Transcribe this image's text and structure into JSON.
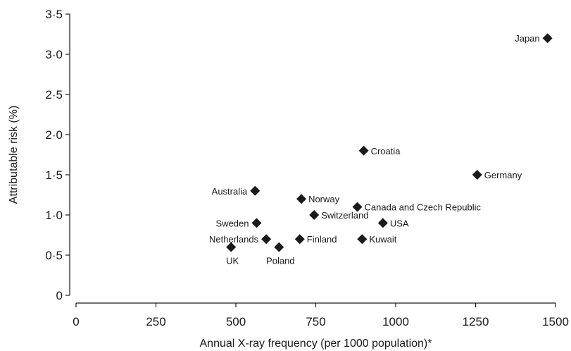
{
  "chart_data": {
    "type": "scatter",
    "title": "",
    "xlabel": "Annual X-ray frequency (per 1000 population)*",
    "ylabel": "Attributable risk (%)",
    "xlim": [
      0,
      1500
    ],
    "ylim": [
      0,
      3.5
    ],
    "x_ticks": [
      {
        "value": 0,
        "label": "0"
      },
      {
        "value": 250,
        "label": "250"
      },
      {
        "value": 500,
        "label": "500"
      },
      {
        "value": 750,
        "label": "750"
      },
      {
        "value": 1000,
        "label": "1000"
      },
      {
        "value": 1250,
        "label": "1250"
      },
      {
        "value": 1500,
        "label": "1500"
      }
    ],
    "y_ticks": [
      {
        "value": 0,
        "label": "0"
      },
      {
        "value": 0.5,
        "label": "0·5"
      },
      {
        "value": 1.0,
        "label": "1·0"
      },
      {
        "value": 1.5,
        "label": "1·5"
      },
      {
        "value": 2.0,
        "label": "2·0"
      },
      {
        "value": 2.5,
        "label": "2·5"
      },
      {
        "value": 3.0,
        "label": "3·0"
      },
      {
        "value": 3.5,
        "label": "3·5"
      }
    ],
    "grid": false,
    "marker": "diamond",
    "marker_color": "#1a1a1a",
    "points": [
      {
        "label": "UK",
        "x": 485,
        "y": 0.6,
        "label_pos": "below"
      },
      {
        "label": "Netherlands",
        "x": 595,
        "y": 0.7,
        "label_pos": "left"
      },
      {
        "label": "Poland",
        "x": 635,
        "y": 0.6,
        "label_pos": "below"
      },
      {
        "label": "Finland",
        "x": 700,
        "y": 0.7,
        "label_pos": "right"
      },
      {
        "label": "Sweden",
        "x": 565,
        "y": 0.9,
        "label_pos": "left"
      },
      {
        "label": "Switzerland",
        "x": 745,
        "y": 1.0,
        "label_pos": "right"
      },
      {
        "label": "Australia",
        "x": 560,
        "y": 1.3,
        "label_pos": "left"
      },
      {
        "label": "Norway",
        "x": 705,
        "y": 1.2,
        "label_pos": "right"
      },
      {
        "label": "Canada and Czech Republic",
        "x": 880,
        "y": 1.1,
        "label_pos": "right"
      },
      {
        "label": "Kuwait",
        "x": 895,
        "y": 0.7,
        "label_pos": "right"
      },
      {
        "label": "USA",
        "x": 960,
        "y": 0.9,
        "label_pos": "right"
      },
      {
        "label": "Croatia",
        "x": 900,
        "y": 1.8,
        "label_pos": "right"
      },
      {
        "label": "Germany",
        "x": 1255,
        "y": 1.5,
        "label_pos": "right"
      },
      {
        "label": "Japan",
        "x": 1475,
        "y": 3.2,
        "label_pos": "left"
      }
    ]
  }
}
